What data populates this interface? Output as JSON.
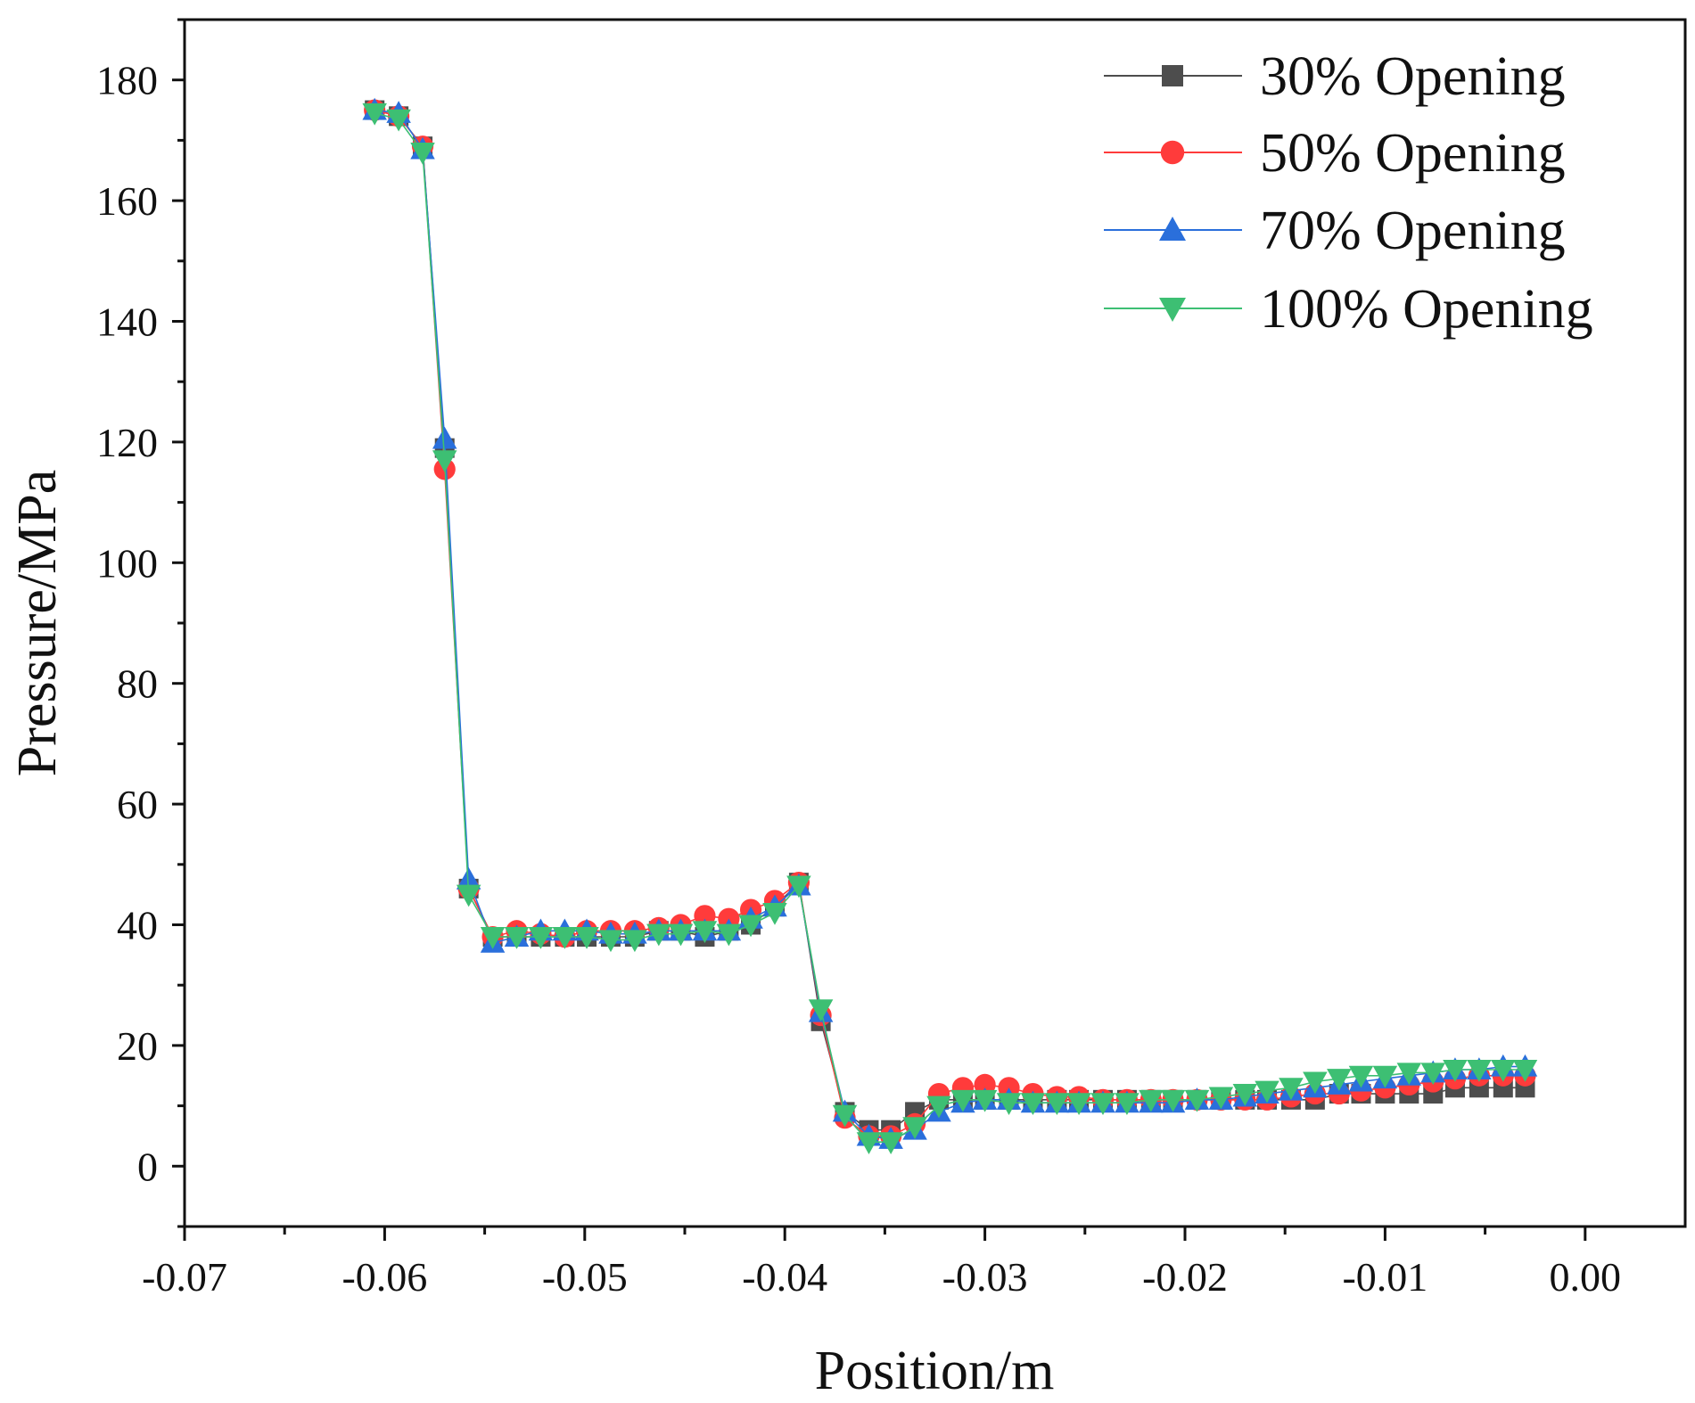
{
  "chart_data": {
    "type": "line",
    "title": "",
    "xlabel": "Position/m",
    "ylabel": "Pressure/MPa",
    "xlim": [
      -0.07,
      0.005
    ],
    "ylim": [
      -10,
      190
    ],
    "xticks": [
      -0.07,
      -0.06,
      -0.05,
      -0.04,
      -0.03,
      -0.02,
      -0.01,
      0.0
    ],
    "xtick_labels": [
      "-0.07",
      "-0.06",
      "-0.05",
      "-0.04",
      "-0.03",
      "-0.02",
      "-0.01",
      "0.00"
    ],
    "yticks": [
      0,
      20,
      40,
      60,
      80,
      100,
      120,
      140,
      160,
      180
    ],
    "ytick_labels": [
      "0",
      "20",
      "40",
      "60",
      "80",
      "100",
      "120",
      "140",
      "160",
      "180"
    ],
    "grid": false,
    "legend_position": "top-right",
    "series": [
      {
        "name": "30% Opening",
        "color": "#4d4d4d",
        "marker": "square",
        "x": [
          -0.0605,
          -0.0593,
          -0.0581,
          -0.057,
          -0.0558,
          -0.0546,
          -0.0534,
          -0.0522,
          -0.051,
          -0.0499,
          -0.0487,
          -0.0475,
          -0.0463,
          -0.0452,
          -0.044,
          -0.0428,
          -0.0417,
          -0.0405,
          -0.0393,
          -0.0382,
          -0.037,
          -0.0358,
          -0.0347,
          -0.0335,
          -0.0323,
          -0.0311,
          -0.03,
          -0.0288,
          -0.0276,
          -0.0264,
          -0.0253,
          -0.0241,
          -0.0229,
          -0.0217,
          -0.0206,
          -0.0194,
          -0.0182,
          -0.017,
          -0.0159,
          -0.0147,
          -0.0135,
          -0.0123,
          -0.0112,
          -0.01,
          -0.0088,
          -0.0076,
          -0.0065,
          -0.0053,
          -0.0041,
          -0.003
        ],
        "y": [
          175,
          174,
          169,
          119,
          46,
          38,
          38,
          38,
          38,
          38,
          38,
          38,
          39,
          39,
          38,
          39,
          40,
          43,
          47,
          24,
          9,
          6,
          6,
          9,
          11,
          11,
          11,
          11,
          11,
          11,
          11,
          11,
          11,
          11,
          11,
          11,
          11,
          11,
          11,
          11,
          11,
          12,
          12,
          12,
          12,
          12,
          13,
          13,
          13,
          13
        ]
      },
      {
        "name": "50% Opening",
        "color": "#ff3b3b",
        "marker": "circle",
        "x": [
          -0.0605,
          -0.0593,
          -0.0581,
          -0.057,
          -0.0558,
          -0.0546,
          -0.0534,
          -0.0522,
          -0.051,
          -0.0499,
          -0.0487,
          -0.0475,
          -0.0463,
          -0.0452,
          -0.044,
          -0.0428,
          -0.0417,
          -0.0405,
          -0.0393,
          -0.0382,
          -0.037,
          -0.0358,
          -0.0347,
          -0.0335,
          -0.0323,
          -0.0311,
          -0.03,
          -0.0288,
          -0.0276,
          -0.0264,
          -0.0253,
          -0.0241,
          -0.0229,
          -0.0217,
          -0.0206,
          -0.0194,
          -0.0182,
          -0.017,
          -0.0159,
          -0.0147,
          -0.0135,
          -0.0123,
          -0.0112,
          -0.01,
          -0.0088,
          -0.0076,
          -0.0065,
          -0.0053,
          -0.0041,
          -0.003
        ],
        "y": [
          175,
          174,
          169,
          115.5,
          46,
          38,
          39,
          38.5,
          38,
          39,
          39,
          39,
          39.5,
          40,
          41.5,
          41,
          42.5,
          44,
          47,
          25,
          8,
          5,
          5,
          7,
          12,
          13,
          13.5,
          13,
          12,
          11.5,
          11.5,
          11,
          11,
          11,
          11,
          11,
          11,
          11,
          11,
          11.5,
          12,
          12,
          12.5,
          13,
          13.5,
          14,
          14.5,
          15,
          15,
          15
        ]
      },
      {
        "name": "70% Opening",
        "color": "#2a6fdb",
        "marker": "triangle-up",
        "x": [
          -0.0605,
          -0.0593,
          -0.0581,
          -0.057,
          -0.0558,
          -0.0546,
          -0.0534,
          -0.0522,
          -0.051,
          -0.0499,
          -0.0487,
          -0.0475,
          -0.0463,
          -0.0452,
          -0.044,
          -0.0428,
          -0.0417,
          -0.0405,
          -0.0393,
          -0.0382,
          -0.037,
          -0.0358,
          -0.0347,
          -0.0335,
          -0.0323,
          -0.0311,
          -0.03,
          -0.0288,
          -0.0276,
          -0.0264,
          -0.0253,
          -0.0241,
          -0.0229,
          -0.0217,
          -0.0206,
          -0.0194,
          -0.0182,
          -0.017,
          -0.0159,
          -0.0147,
          -0.0135,
          -0.0123,
          -0.0112,
          -0.01,
          -0.0088,
          -0.0076,
          -0.0065,
          -0.0053,
          -0.0041,
          -0.003
        ],
        "y": [
          175,
          174.5,
          168.5,
          120.5,
          47.5,
          37,
          38,
          39,
          39,
          39,
          38.5,
          38.5,
          39,
          39,
          39,
          39,
          41,
          43,
          46.5,
          25.5,
          9,
          5,
          4.5,
          6,
          9,
          10.5,
          11,
          11,
          10.5,
          10.5,
          10.5,
          10.5,
          10.5,
          10.5,
          10.5,
          11,
          11,
          11.5,
          12,
          12.5,
          13,
          13.5,
          14,
          14.5,
          15,
          15.5,
          16,
          16,
          16.5,
          16.5
        ]
      },
      {
        "name": "100% Opening",
        "color": "#3dbf73",
        "marker": "triangle-down",
        "x": [
          -0.0605,
          -0.0593,
          -0.0581,
          -0.057,
          -0.0558,
          -0.0546,
          -0.0534,
          -0.0522,
          -0.051,
          -0.0499,
          -0.0487,
          -0.0475,
          -0.0463,
          -0.0452,
          -0.044,
          -0.0428,
          -0.0417,
          -0.0405,
          -0.0393,
          -0.0382,
          -0.037,
          -0.0358,
          -0.0347,
          -0.0335,
          -0.0323,
          -0.0311,
          -0.03,
          -0.0288,
          -0.0276,
          -0.0264,
          -0.0253,
          -0.0241,
          -0.0229,
          -0.0217,
          -0.0206,
          -0.0194,
          -0.0182,
          -0.017,
          -0.0159,
          -0.0147,
          -0.0135,
          -0.0123,
          -0.0112,
          -0.01,
          -0.0088,
          -0.0076,
          -0.0065,
          -0.0053,
          -0.0041,
          -0.003
        ],
        "y": [
          174.5,
          173.5,
          168,
          117,
          45,
          38,
          38,
          38,
          38,
          38,
          37.5,
          37.5,
          38.5,
          38.5,
          39,
          38.5,
          40,
          42,
          46.5,
          26,
          8.5,
          4,
          4,
          6.5,
          10,
          11,
          11,
          10.5,
          10.5,
          10.5,
          10.5,
          10.5,
          10.5,
          11,
          11,
          11,
          11.5,
          12,
          12.5,
          13,
          14,
          14.5,
          15,
          15,
          15.5,
          15.5,
          16,
          16,
          16,
          16
        ]
      }
    ]
  }
}
